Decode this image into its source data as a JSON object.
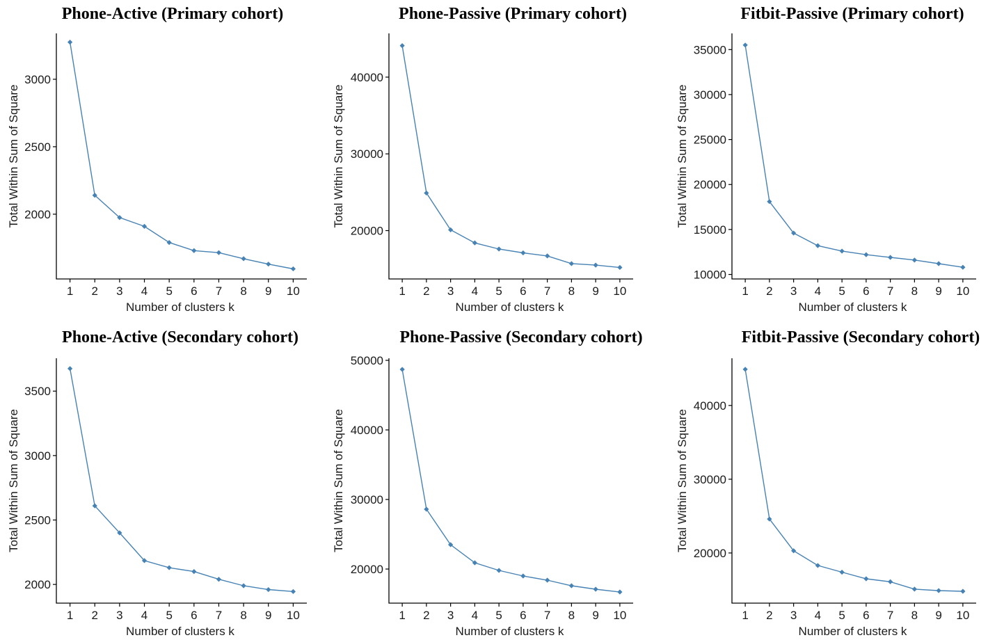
{
  "figure": {
    "line_color": "#4682B4",
    "axis_color": "#000000"
  },
  "chart_data": [
    {
      "type": "line",
      "title": "Phone-Active (Primary cohort)",
      "xlabel": "Number of clusters k",
      "ylabel": "Total Within Sum of Square",
      "x": [
        1,
        2,
        3,
        4,
        5,
        6,
        7,
        8,
        9,
        10
      ],
      "series": [
        {
          "values": [
            3275,
            2140,
            1975,
            1910,
            1790,
            1730,
            1715,
            1670,
            1630,
            1595
          ]
        }
      ],
      "ylim": [
        1520,
        3340
      ],
      "yticks": [
        2000,
        2500,
        3000
      ],
      "xticks": [
        1,
        2,
        3,
        4,
        5,
        6,
        7,
        8,
        9,
        10
      ]
    },
    {
      "type": "line",
      "title": "Phone-Passive (Primary cohort)",
      "xlabel": "Number of clusters k",
      "ylabel": "Total Within Sum of Square",
      "x": [
        1,
        2,
        3,
        4,
        5,
        6,
        7,
        8,
        9,
        10
      ],
      "series": [
        {
          "values": [
            44100,
            24900,
            20100,
            18400,
            17600,
            17100,
            16700,
            15700,
            15500,
            15200
          ]
        }
      ],
      "ylim": [
        13700,
        45700
      ],
      "yticks": [
        20000,
        30000,
        40000
      ],
      "xticks": [
        1,
        2,
        3,
        4,
        5,
        6,
        7,
        8,
        9,
        10
      ]
    },
    {
      "type": "line",
      "title": "Fitbit-Passive (Primary cohort)",
      "xlabel": "Number of clusters k",
      "ylabel": "Total Within Sum of Square",
      "x": [
        1,
        2,
        3,
        4,
        5,
        6,
        7,
        8,
        9,
        10
      ],
      "series": [
        {
          "values": [
            35500,
            18100,
            14600,
            13200,
            12600,
            12200,
            11900,
            11600,
            11200,
            10800
          ]
        }
      ],
      "ylim": [
        9500,
        36800
      ],
      "yticks": [
        10000,
        15000,
        20000,
        25000,
        30000,
        35000
      ],
      "xticks": [
        1,
        2,
        3,
        4,
        5,
        6,
        7,
        8,
        9,
        10
      ]
    },
    {
      "type": "line",
      "title": "Phone-Active (Secondary cohort)",
      "xlabel": "Number of clusters k",
      "ylabel": "Total Within Sum of Square",
      "x": [
        1,
        2,
        3,
        4,
        5,
        6,
        7,
        8,
        9,
        10
      ],
      "series": [
        {
          "values": [
            3675,
            2610,
            2400,
            2185,
            2130,
            2100,
            2040,
            1990,
            1960,
            1945
          ]
        }
      ],
      "ylim": [
        1855,
        3755
      ],
      "yticks": [
        2000,
        2500,
        3000,
        3500
      ],
      "xticks": [
        1,
        2,
        3,
        4,
        5,
        6,
        7,
        8,
        9,
        10
      ]
    },
    {
      "type": "line",
      "title": "Phone-Passive (Secondary cohort)",
      "xlabel": "Number of clusters k",
      "ylabel": "Total Within Sum of Square",
      "x": [
        1,
        2,
        3,
        4,
        5,
        6,
        7,
        8,
        9,
        10
      ],
      "series": [
        {
          "values": [
            48700,
            28600,
            23500,
            20900,
            19800,
            19000,
            18400,
            17600,
            17100,
            16700
          ]
        }
      ],
      "ylim": [
        15100,
        50300
      ],
      "yticks": [
        20000,
        30000,
        40000,
        50000
      ],
      "xticks": [
        1,
        2,
        3,
        4,
        5,
        6,
        7,
        8,
        9,
        10
      ]
    },
    {
      "type": "line",
      "title": "Fitbit-Passive (Secondary cohort)",
      "xlabel": "Number of clusters k",
      "ylabel": "Total Within Sum of Square",
      "x": [
        1,
        2,
        3,
        4,
        5,
        6,
        7,
        8,
        9,
        10
      ],
      "series": [
        {
          "values": [
            44900,
            24600,
            20300,
            18300,
            17400,
            16500,
            16100,
            15100,
            14900,
            14800
          ]
        }
      ],
      "ylim": [
        13200,
        46400
      ],
      "yticks": [
        20000,
        30000,
        40000
      ],
      "xticks": [
        1,
        2,
        3,
        4,
        5,
        6,
        7,
        8,
        9,
        10
      ]
    }
  ]
}
